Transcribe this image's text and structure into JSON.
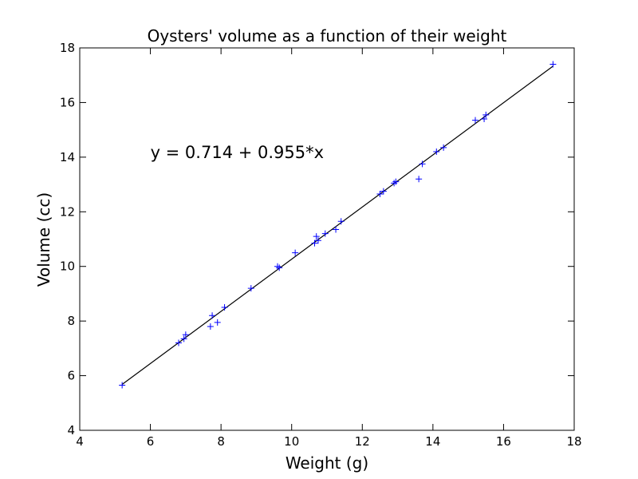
{
  "chart_data": {
    "type": "scatter",
    "title": "Oysters' volume as a function of their weight",
    "xlabel": "Weight (g)",
    "ylabel": "Volume (cc)",
    "xlim": [
      4,
      18
    ],
    "ylim": [
      4,
      18
    ],
    "xticks": [
      "4",
      "6",
      "8",
      "10",
      "12",
      "14",
      "16",
      "18"
    ],
    "yticks": [
      "4",
      "6",
      "8",
      "10",
      "12",
      "14",
      "16",
      "18"
    ],
    "grid": false,
    "marker": "+",
    "marker_color": "#0000ff",
    "line_color": "#000000",
    "annotation": "y = 0.714 + 0.955*x",
    "series": [
      {
        "x": [
          5.2,
          6.8,
          6.95,
          7.0,
          7.7,
          7.75,
          7.9,
          8.1,
          8.85,
          9.6,
          9.65,
          10.1,
          10.65,
          10.7,
          10.75,
          10.95,
          11.25,
          11.4,
          12.5,
          12.6,
          12.9,
          12.95,
          13.6,
          13.7,
          14.1,
          14.3,
          15.2,
          15.45,
          15.5,
          17.4
        ],
        "y": [
          5.65,
          7.2,
          7.35,
          7.5,
          7.8,
          8.2,
          7.95,
          8.5,
          9.2,
          10.0,
          9.95,
          10.5,
          10.85,
          11.1,
          10.95,
          11.2,
          11.35,
          11.65,
          12.65,
          12.75,
          13.05,
          13.1,
          13.2,
          13.75,
          14.2,
          14.35,
          15.35,
          15.4,
          15.55,
          17.4
        ]
      }
    ],
    "fit": {
      "intercept": 0.714,
      "slope": 0.955,
      "x_range": [
        5.2,
        17.4
      ]
    }
  }
}
